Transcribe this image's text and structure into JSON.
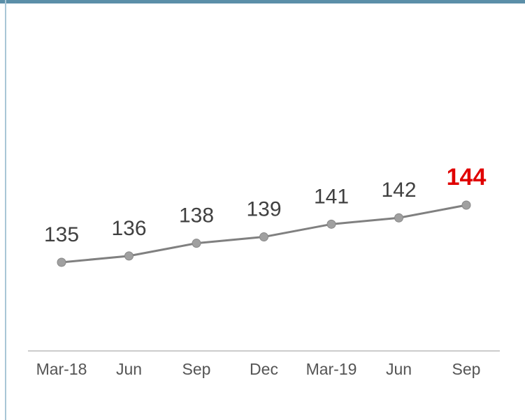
{
  "chart_data": {
    "type": "line",
    "categories": [
      "Mar-18",
      "Jun",
      "Sep",
      "Dec",
      "Mar-19",
      "Jun",
      "Sep"
    ],
    "values": [
      135,
      136,
      138,
      139,
      141,
      142,
      144
    ],
    "color": "#808080",
    "marker_color": "#a0a0a0",
    "label_color": "#404040",
    "highlight_color": "#e00000"
  }
}
